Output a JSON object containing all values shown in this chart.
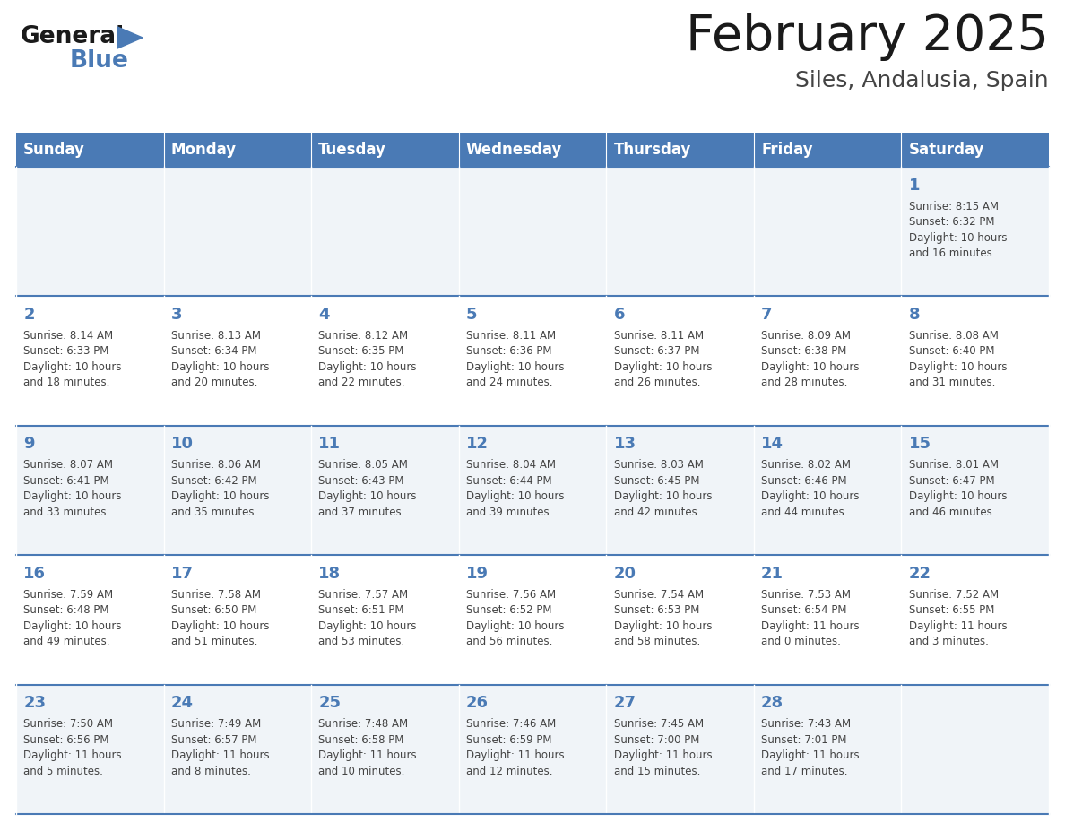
{
  "title": "February 2025",
  "subtitle": "Siles, Andalusia, Spain",
  "header_color": "#4a7ab5",
  "header_text_color": "#FFFFFF",
  "cell_bg_light": "#f0f4f8",
  "cell_bg_white": "#FFFFFF",
  "border_color": "#4a7ab5",
  "text_color": "#444444",
  "day_number_color": "#4a7ab5",
  "days_of_week": [
    "Sunday",
    "Monday",
    "Tuesday",
    "Wednesday",
    "Thursday",
    "Friday",
    "Saturday"
  ],
  "weeks": [
    [
      {
        "day": "",
        "info": ""
      },
      {
        "day": "",
        "info": ""
      },
      {
        "day": "",
        "info": ""
      },
      {
        "day": "",
        "info": ""
      },
      {
        "day": "",
        "info": ""
      },
      {
        "day": "",
        "info": ""
      },
      {
        "day": "1",
        "info": "Sunrise: 8:15 AM\nSunset: 6:32 PM\nDaylight: 10 hours\nand 16 minutes."
      }
    ],
    [
      {
        "day": "2",
        "info": "Sunrise: 8:14 AM\nSunset: 6:33 PM\nDaylight: 10 hours\nand 18 minutes."
      },
      {
        "day": "3",
        "info": "Sunrise: 8:13 AM\nSunset: 6:34 PM\nDaylight: 10 hours\nand 20 minutes."
      },
      {
        "day": "4",
        "info": "Sunrise: 8:12 AM\nSunset: 6:35 PM\nDaylight: 10 hours\nand 22 minutes."
      },
      {
        "day": "5",
        "info": "Sunrise: 8:11 AM\nSunset: 6:36 PM\nDaylight: 10 hours\nand 24 minutes."
      },
      {
        "day": "6",
        "info": "Sunrise: 8:11 AM\nSunset: 6:37 PM\nDaylight: 10 hours\nand 26 minutes."
      },
      {
        "day": "7",
        "info": "Sunrise: 8:09 AM\nSunset: 6:38 PM\nDaylight: 10 hours\nand 28 minutes."
      },
      {
        "day": "8",
        "info": "Sunrise: 8:08 AM\nSunset: 6:40 PM\nDaylight: 10 hours\nand 31 minutes."
      }
    ],
    [
      {
        "day": "9",
        "info": "Sunrise: 8:07 AM\nSunset: 6:41 PM\nDaylight: 10 hours\nand 33 minutes."
      },
      {
        "day": "10",
        "info": "Sunrise: 8:06 AM\nSunset: 6:42 PM\nDaylight: 10 hours\nand 35 minutes."
      },
      {
        "day": "11",
        "info": "Sunrise: 8:05 AM\nSunset: 6:43 PM\nDaylight: 10 hours\nand 37 minutes."
      },
      {
        "day": "12",
        "info": "Sunrise: 8:04 AM\nSunset: 6:44 PM\nDaylight: 10 hours\nand 39 minutes."
      },
      {
        "day": "13",
        "info": "Sunrise: 8:03 AM\nSunset: 6:45 PM\nDaylight: 10 hours\nand 42 minutes."
      },
      {
        "day": "14",
        "info": "Sunrise: 8:02 AM\nSunset: 6:46 PM\nDaylight: 10 hours\nand 44 minutes."
      },
      {
        "day": "15",
        "info": "Sunrise: 8:01 AM\nSunset: 6:47 PM\nDaylight: 10 hours\nand 46 minutes."
      }
    ],
    [
      {
        "day": "16",
        "info": "Sunrise: 7:59 AM\nSunset: 6:48 PM\nDaylight: 10 hours\nand 49 minutes."
      },
      {
        "day": "17",
        "info": "Sunrise: 7:58 AM\nSunset: 6:50 PM\nDaylight: 10 hours\nand 51 minutes."
      },
      {
        "day": "18",
        "info": "Sunrise: 7:57 AM\nSunset: 6:51 PM\nDaylight: 10 hours\nand 53 minutes."
      },
      {
        "day": "19",
        "info": "Sunrise: 7:56 AM\nSunset: 6:52 PM\nDaylight: 10 hours\nand 56 minutes."
      },
      {
        "day": "20",
        "info": "Sunrise: 7:54 AM\nSunset: 6:53 PM\nDaylight: 10 hours\nand 58 minutes."
      },
      {
        "day": "21",
        "info": "Sunrise: 7:53 AM\nSunset: 6:54 PM\nDaylight: 11 hours\nand 0 minutes."
      },
      {
        "day": "22",
        "info": "Sunrise: 7:52 AM\nSunset: 6:55 PM\nDaylight: 11 hours\nand 3 minutes."
      }
    ],
    [
      {
        "day": "23",
        "info": "Sunrise: 7:50 AM\nSunset: 6:56 PM\nDaylight: 11 hours\nand 5 minutes."
      },
      {
        "day": "24",
        "info": "Sunrise: 7:49 AM\nSunset: 6:57 PM\nDaylight: 11 hours\nand 8 minutes."
      },
      {
        "day": "25",
        "info": "Sunrise: 7:48 AM\nSunset: 6:58 PM\nDaylight: 11 hours\nand 10 minutes."
      },
      {
        "day": "26",
        "info": "Sunrise: 7:46 AM\nSunset: 6:59 PM\nDaylight: 11 hours\nand 12 minutes."
      },
      {
        "day": "27",
        "info": "Sunrise: 7:45 AM\nSunset: 7:00 PM\nDaylight: 11 hours\nand 15 minutes."
      },
      {
        "day": "28",
        "info": "Sunrise: 7:43 AM\nSunset: 7:01 PM\nDaylight: 11 hours\nand 17 minutes."
      },
      {
        "day": "",
        "info": ""
      }
    ]
  ]
}
